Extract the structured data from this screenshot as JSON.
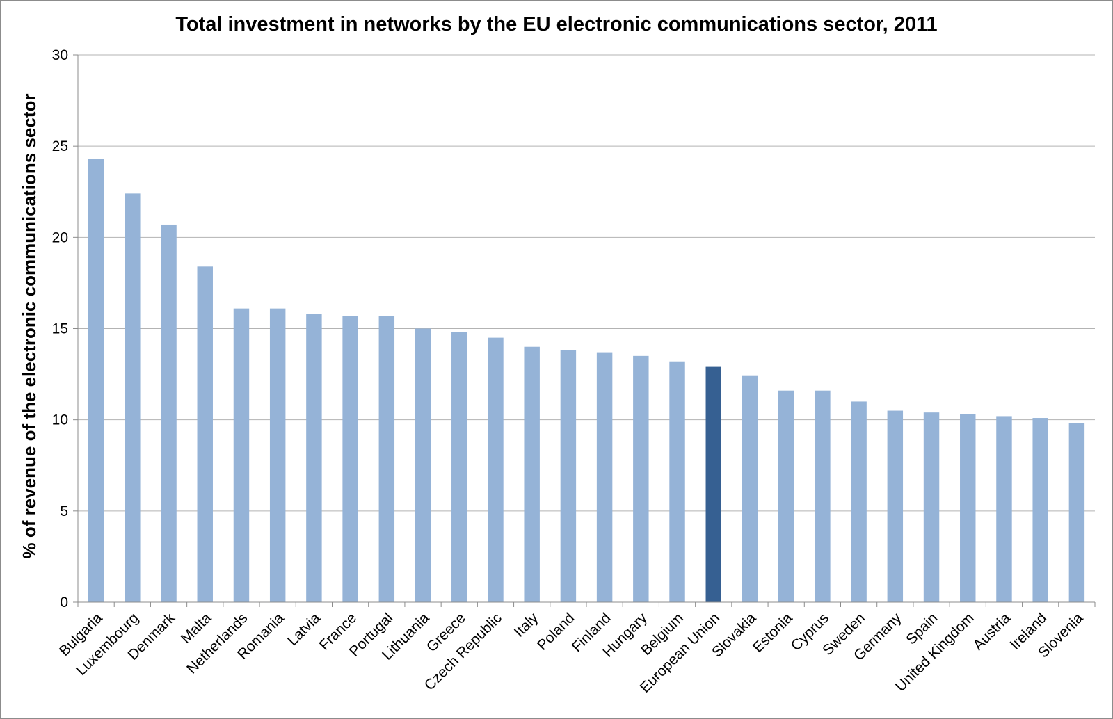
{
  "chart_data": {
    "type": "bar",
    "title": "Total investment in networks by the EU electronic communications sector, 2011",
    "xlabel": "",
    "ylabel": "% of revenue of the electronic communications sector",
    "ylim": [
      0,
      30
    ],
    "yticks": [
      0,
      5,
      10,
      15,
      20,
      25,
      30
    ],
    "grid": true,
    "legend": "none",
    "categories": [
      "Bulgaria",
      "Luxembourg",
      "Denmark",
      "Malta",
      "Netherlands",
      "Romania",
      "Latvia",
      "France",
      "Portugal",
      "Lithuania",
      "Greece",
      "Czech Republic",
      "Italy",
      "Poland",
      "Finland",
      "Hungary",
      "Belgium",
      "European Union",
      "Slovakia",
      "Estonia",
      "Cyprus",
      "Sweden",
      "Germany",
      "Spain",
      "United Kingdom",
      "Austria",
      "Ireland",
      "Slovenia"
    ],
    "values": [
      24.3,
      22.4,
      20.7,
      18.4,
      16.1,
      16.1,
      15.8,
      15.7,
      15.7,
      15.0,
      14.8,
      14.5,
      14.0,
      13.8,
      13.7,
      13.5,
      13.2,
      12.9,
      12.4,
      11.6,
      11.6,
      11.0,
      10.5,
      10.4,
      10.3,
      10.2,
      10.1,
      9.8
    ],
    "highlight": "European Union",
    "colors": {
      "bar": "#95b3d7",
      "highlight": "#366092",
      "grid": "#b3b3b3",
      "axis": "#8c8c8c"
    }
  }
}
